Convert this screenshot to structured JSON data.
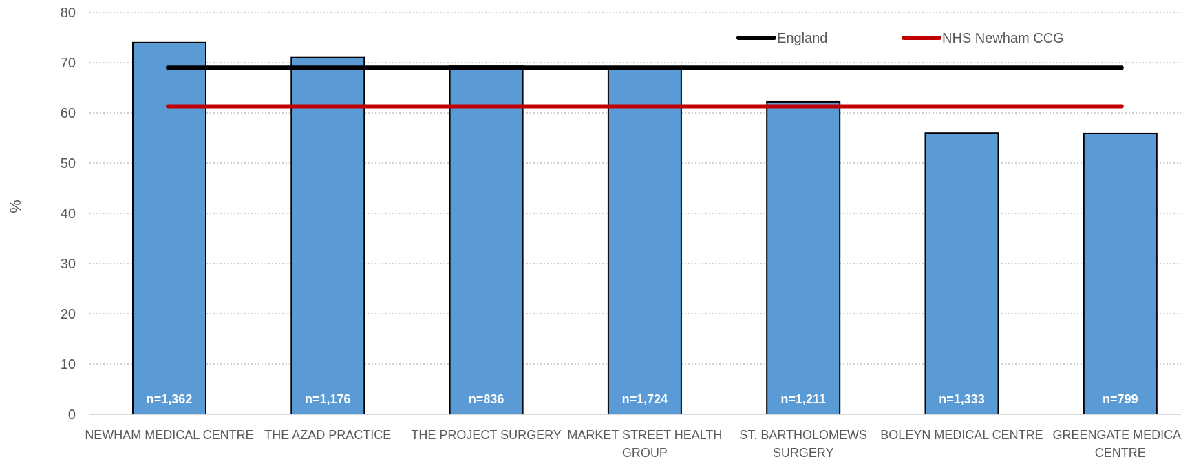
{
  "chart_data": {
    "type": "bar",
    "ylabel": "%",
    "ylim": [
      0,
      80
    ],
    "yticks": [
      0,
      10,
      20,
      30,
      40,
      50,
      60,
      70,
      80
    ],
    "grid": "horizontal-dotted",
    "legend_position": "top-right",
    "categories": [
      "NEWHAM MEDICAL CENTRE",
      "THE AZAD PRACTICE",
      "THE PROJECT SURGERY",
      "MARKET STREET HEALTH GROUP",
      "ST. BARTHOLOMEWS SURGERY",
      "BOLEYN MEDICAL CENTRE",
      "GREENGATE MEDICAL CENTRE"
    ],
    "series": [
      {
        "values": [
          74,
          71,
          69.3,
          69,
          62.2,
          56,
          55.9
        ],
        "color": "#5b9bd5",
        "data_labels": [
          "n=1,362",
          "n=1,176",
          "n=836",
          "n=1,724",
          "n=1,211",
          "n=1,333",
          "n=799"
        ]
      }
    ],
    "reference_lines": [
      {
        "name": "England",
        "value": 69,
        "color": "#000000"
      },
      {
        "name": "NHS Newham CCG",
        "value": 61.3,
        "color": "#c00000"
      }
    ]
  }
}
